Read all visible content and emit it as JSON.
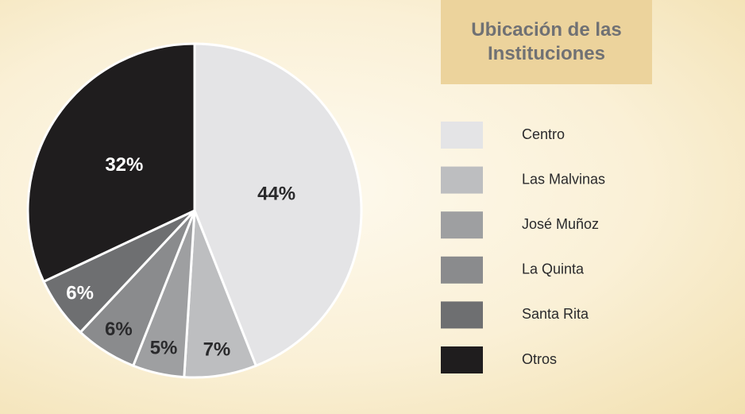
{
  "chart_data": {
    "type": "pie",
    "title": "Ubicación de las Instituciones",
    "categories": [
      "Centro",
      "Las Malvinas",
      "José Muñoz",
      "La Quinta",
      "Santa Rita",
      "Otros"
    ],
    "values": [
      44,
      7,
      5,
      6,
      6,
      32
    ],
    "value_labels": [
      "44%",
      "7%",
      "5%",
      "6%",
      "6%",
      "32%"
    ],
    "colors": [
      "#e4e4e6",
      "#bdbec0",
      "#9e9fa1",
      "#8a8b8d",
      "#6e6f71",
      "#1f1d1e"
    ],
    "legend": "right"
  }
}
